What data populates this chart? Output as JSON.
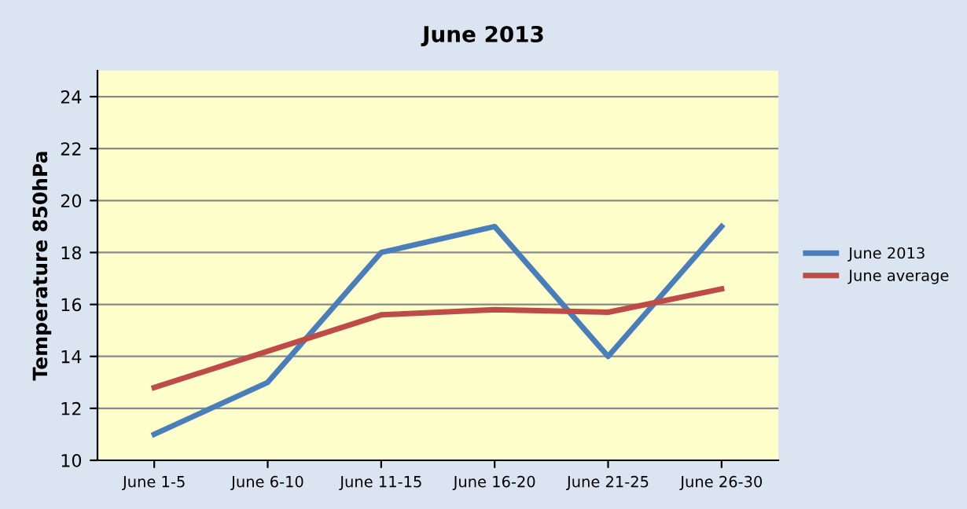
{
  "chart_data": {
    "type": "line",
    "title": "June 2013",
    "ylabel": "Temperature 850hPa",
    "categories": [
      "June 1-5",
      "June 6-10",
      "June 11-15",
      "June 16-20",
      "June 21-25",
      "June 26-30"
    ],
    "series": [
      {
        "name": "June 2013",
        "color": "#4a7ebb",
        "values": [
          11,
          13,
          18,
          19,
          14,
          19
        ]
      },
      {
        "name": "June average",
        "color": "#be4b48",
        "values": [
          12.8,
          14.2,
          15.6,
          15.8,
          15.7,
          16.6
        ]
      }
    ],
    "ylim": [
      10,
      25
    ],
    "yticks": [
      10,
      12,
      14,
      16,
      18,
      20,
      22,
      24
    ],
    "grid": "y",
    "legend": "right",
    "marker": "none",
    "line_style": "solid"
  }
}
